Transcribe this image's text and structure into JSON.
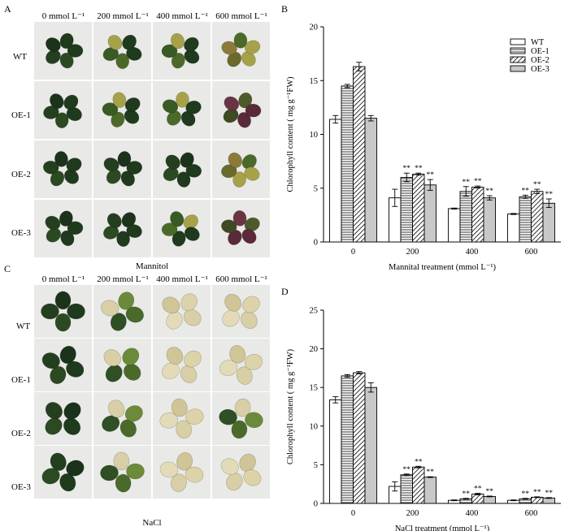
{
  "panels": {
    "A": {
      "letter": "A",
      "caption": "Mannitol",
      "columns": [
        "0 mmol L⁻¹",
        "200 mmol L⁻¹",
        "400 mmol L⁻¹",
        "600 mmol L⁻¹"
      ],
      "rows": [
        "WT",
        "OE-1",
        "OE-2",
        "OE-3"
      ]
    },
    "C": {
      "letter": "C",
      "caption": "NaCl",
      "columns": [
        "0 mmol L⁻¹",
        "200 mmol L⁻¹",
        "400 mmol L⁻¹",
        "600 mmol L⁻¹"
      ],
      "rows": [
        "WT",
        "OE-1",
        "OE-2",
        "OE-3"
      ]
    }
  },
  "chart_data": [
    {
      "panel": "B",
      "type": "bar",
      "xlabel": "Mannital treatment (mmol L⁻¹)",
      "ylabel": "Chlorophyll content ( mg g⁻¹FW)",
      "ylim": [
        0,
        20
      ],
      "yticks": [
        0,
        5,
        10,
        15,
        20
      ],
      "categories": [
        "0",
        "200",
        "400",
        "600"
      ],
      "legend_position": "top-right",
      "series": [
        {
          "name": "WT",
          "pattern": "white",
          "values": [
            11.4,
            4.1,
            3.1,
            2.6
          ],
          "errors": [
            0.35,
            0.8,
            0.05,
            0.05
          ],
          "marks": [
            "",
            "",
            "",
            ""
          ]
        },
        {
          "name": "OE-1",
          "pattern": "horizontal",
          "values": [
            14.5,
            6.0,
            4.7,
            4.2
          ],
          "errors": [
            0.15,
            0.4,
            0.45,
            0.15
          ],
          "marks": [
            "",
            "**",
            "**",
            "**"
          ]
        },
        {
          "name": "OE-2",
          "pattern": "diagonal",
          "values": [
            16.3,
            6.3,
            5.1,
            4.7
          ],
          "errors": [
            0.4,
            0.1,
            0.1,
            0.2
          ],
          "marks": [
            "",
            "**",
            "**",
            "**"
          ]
        },
        {
          "name": "OE-3",
          "pattern": "gray",
          "values": [
            11.5,
            5.3,
            4.1,
            3.6
          ],
          "errors": [
            0.25,
            0.5,
            0.2,
            0.4
          ],
          "marks": [
            "",
            "**",
            "**",
            "**"
          ]
        }
      ]
    },
    {
      "panel": "D",
      "type": "bar",
      "xlabel": "NaCl treatment (mmol L⁻¹)",
      "ylabel": "Chlorophyll content ( mg g⁻¹FW)",
      "ylim": [
        0,
        25
      ],
      "yticks": [
        0,
        5,
        10,
        15,
        20,
        25
      ],
      "categories": [
        "0",
        "200",
        "400",
        "600"
      ],
      "series": [
        {
          "name": "WT",
          "pattern": "white",
          "values": [
            13.4,
            2.2,
            0.4,
            0.4
          ],
          "errors": [
            0.4,
            0.6,
            0.05,
            0.05
          ],
          "marks": [
            "",
            "",
            "",
            ""
          ]
        },
        {
          "name": "OE-1",
          "pattern": "horizontal",
          "values": [
            16.5,
            3.7,
            0.6,
            0.6
          ],
          "errors": [
            0.15,
            0.1,
            0.05,
            0.05
          ],
          "marks": [
            "",
            "**",
            "**",
            "**"
          ]
        },
        {
          "name": "OE-2",
          "pattern": "diagonal",
          "values": [
            16.9,
            4.7,
            1.2,
            0.8
          ],
          "errors": [
            0.15,
            0.1,
            0.1,
            0.05
          ],
          "marks": [
            "",
            "**",
            "**",
            "**"
          ]
        },
        {
          "name": "OE-3",
          "pattern": "gray",
          "values": [
            15.0,
            3.4,
            0.9,
            0.7
          ],
          "errors": [
            0.6,
            0.05,
            0.05,
            0.05
          ],
          "marks": [
            "",
            "**",
            "**",
            "**"
          ]
        }
      ]
    }
  ],
  "chart_letters": {
    "B": "B",
    "D": "D"
  },
  "colors": {
    "leaf_healthy": "#1f3a1c",
    "leaf_mid": "#4b6a2a",
    "leaf_yellow": "#a7a24a",
    "leaf_purple": "#5a2a3a",
    "leaf_bleached": "#d8cfa6",
    "background_cell": "#e9e9e7",
    "bar_gray": "#c8c8c8"
  },
  "cell_states": {
    "A": [
      [
        "healthy",
        "mid",
        "mid",
        "yellow"
      ],
      [
        "healthy",
        "mid",
        "mid",
        "purple"
      ],
      [
        "healthy",
        "healthy",
        "healthy",
        "yellow"
      ],
      [
        "healthy",
        "healthy",
        "mid",
        "purple"
      ]
    ],
    "C": [
      [
        "healthy",
        "mixed",
        "bleached",
        "bleached"
      ],
      [
        "healthy",
        "mixed",
        "bleached",
        "bleached"
      ],
      [
        "healthy",
        "mixed",
        "bleached",
        "mixed"
      ],
      [
        "healthy",
        "mixed",
        "bleached",
        "bleached"
      ]
    ]
  }
}
